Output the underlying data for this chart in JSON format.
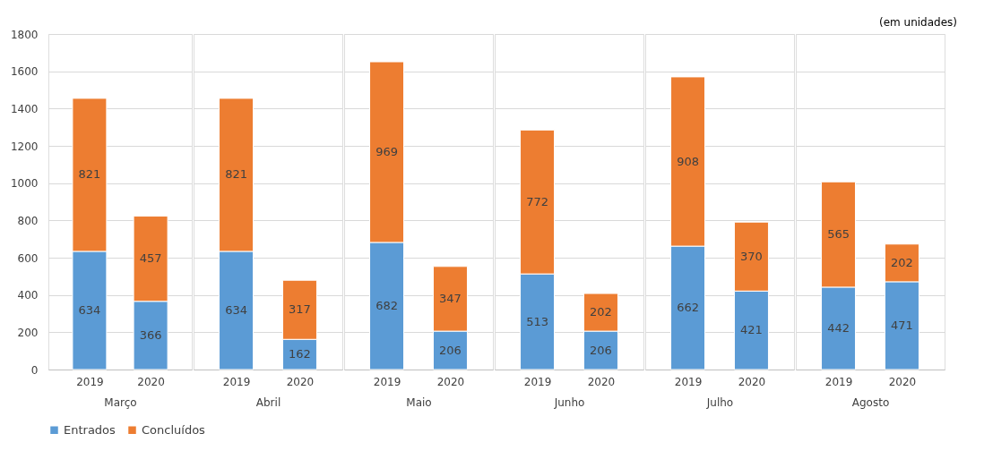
{
  "chart_data": [
    {
      "type": "bar",
      "stacked": true,
      "categories": [
        "2019",
        "2020"
      ],
      "xlabel": "Março",
      "ylim": [
        0,
        1800
      ],
      "yticks": [
        0,
        200,
        400,
        600,
        800,
        1000,
        1200,
        1400,
        1600,
        1800
      ],
      "grid": "y",
      "data_labels": true,
      "legend": "bottom",
      "series": [
        {
          "name": "Entrados",
          "color": "#5b9bd5",
          "values": [
            634,
            366
          ]
        },
        {
          "name": "Concluídos",
          "color": "#ed7d31",
          "values": [
            821,
            457
          ]
        }
      ]
    },
    {
      "type": "bar",
      "stacked": true,
      "categories": [
        "2019",
        "2020"
      ],
      "xlabel": "Abril",
      "ylim": [
        0,
        1800
      ],
      "yticks": [
        0,
        200,
        400,
        600,
        800,
        1000,
        1200,
        1400,
        1600,
        1800
      ],
      "grid": "y",
      "data_labels": true,
      "tick_labels": "x",
      "series": [
        {
          "name": "Entrados",
          "color": "#5b9bd5",
          "values": [
            634,
            162
          ]
        },
        {
          "name": "Concluídos",
          "color": "#ed7d31",
          "values": [
            821,
            317
          ]
        }
      ]
    },
    {
      "type": "bar",
      "stacked": true,
      "categories": [
        "2019",
        "2020"
      ],
      "xlabel": "Maio",
      "ylim": [
        0,
        1800
      ],
      "yticks": [
        0,
        200,
        400,
        600,
        800,
        1000,
        1200,
        1400,
        1600,
        1800
      ],
      "grid": "y",
      "data_labels": true,
      "tick_labels": "x",
      "series": [
        {
          "name": "Entrados",
          "color": "#5b9bd5",
          "values": [
            682,
            206
          ]
        },
        {
          "name": "Concluídos",
          "color": "#ed7d31",
          "values": [
            969,
            347
          ]
        }
      ]
    },
    {
      "type": "bar",
      "stacked": true,
      "categories": [
        "2019",
        "2020"
      ],
      "xlabel": "Junho",
      "ylim": [
        0,
        1800
      ],
      "yticks": [
        0,
        200,
        400,
        600,
        800,
        1000,
        1200,
        1400,
        1600,
        1800
      ],
      "grid": "y",
      "data_labels": true,
      "tick_labels": "x",
      "series": [
        {
          "name": "Entrados",
          "color": "#5b9bd5",
          "values": [
            513,
            206
          ]
        },
        {
          "name": "Concluídos",
          "color": "#ed7d31",
          "values": [
            772,
            202
          ]
        }
      ]
    },
    {
      "type": "bar",
      "stacked": true,
      "categories": [
        "2019",
        "2020"
      ],
      "xlabel": "Julho",
      "ylim": [
        0,
        1800
      ],
      "yticks": [
        0,
        200,
        400,
        600,
        800,
        1000,
        1200,
        1400,
        1600,
        1800
      ],
      "grid": "y",
      "data_labels": true,
      "tick_labels": "x",
      "series": [
        {
          "name": "Entrados",
          "color": "#5b9bd5",
          "values": [
            662,
            421
          ]
        },
        {
          "name": "Concluídos",
          "color": "#ed7d31",
          "values": [
            908,
            370
          ]
        }
      ]
    },
    {
      "type": "bar",
      "stacked": true,
      "categories": [
        "2019",
        "2020"
      ],
      "xlabel": "Agosto",
      "ylim": [
        0,
        1800
      ],
      "yticks": [
        0,
        200,
        400,
        600,
        800,
        1000,
        1200,
        1400,
        1600,
        1800
      ],
      "grid": "y",
      "data_labels": true,
      "tick_labels": "x",
      "annotations": [
        "(em unidades)"
      ],
      "series": [
        {
          "name": "Entrados",
          "color": "#5b9bd5",
          "values": [
            442,
            471
          ]
        },
        {
          "name": "Concluídos",
          "color": "#ed7d31",
          "values": [
            565,
            202
          ]
        }
      ]
    }
  ]
}
